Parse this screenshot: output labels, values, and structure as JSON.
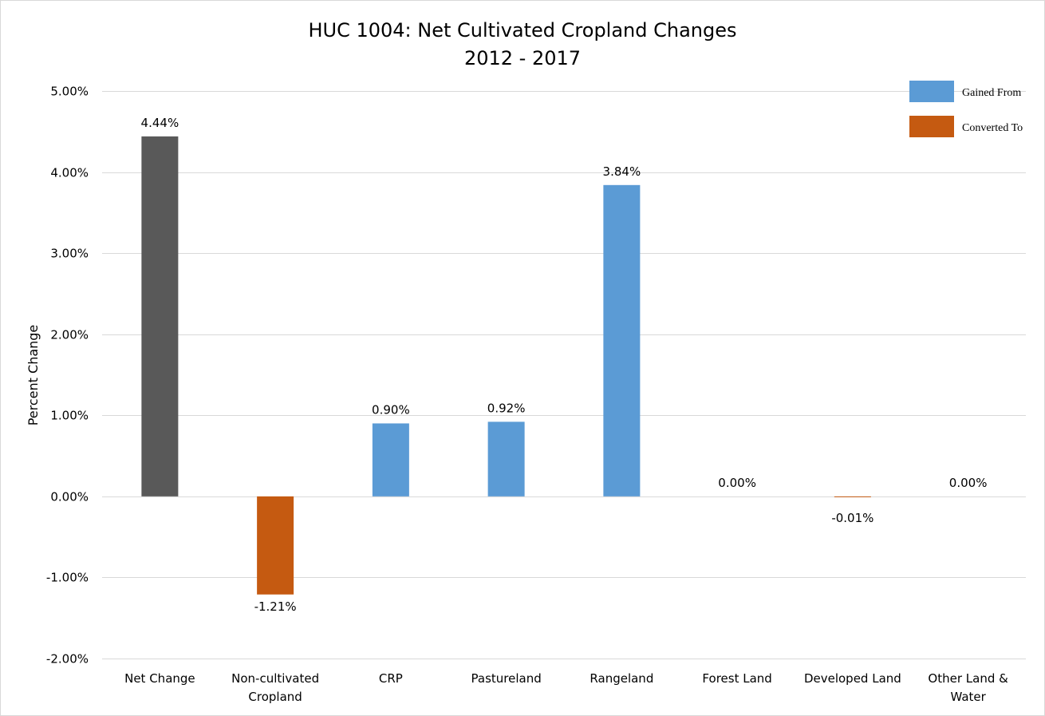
{
  "chart_data": {
    "type": "bar",
    "title": [
      "HUC 1004: Net Cultivated Cropland Changes",
      "2012 - 2017"
    ],
    "xlabel": "",
    "ylabel": "Percent Change",
    "ylim": [
      -2.0,
      5.0
    ],
    "yticks": [
      -2.0,
      -1.0,
      0.0,
      1.0,
      2.0,
      3.0,
      4.0,
      5.0
    ],
    "ytick_labels": [
      "-2.00%",
      "-1.00%",
      "0.00%",
      "1.00%",
      "2.00%",
      "3.00%",
      "4.00%",
      "5.00%"
    ],
    "grid": true,
    "legend_position": "top-right",
    "categories": [
      [
        "Net Change"
      ],
      [
        "Non-cultivated",
        "Cropland"
      ],
      [
        "CRP"
      ],
      [
        "Pastureland"
      ],
      [
        "Rangeland"
      ],
      [
        "Forest Land"
      ],
      [
        "Developed Land"
      ],
      [
        "Other Land &",
        "Water"
      ]
    ],
    "values": [
      4.44,
      -1.21,
      0.9,
      0.92,
      3.84,
      0.0,
      -0.01,
      0.0
    ],
    "value_labels": [
      "4.44%",
      "-1.21%",
      "0.90%",
      "0.92%",
      "3.84%",
      "0.00%",
      "-0.01%",
      "0.00%"
    ],
    "bar_series": [
      "net",
      "converted",
      "gained",
      "gained",
      "gained",
      "gained",
      "converted",
      "gained"
    ],
    "legend": [
      {
        "key": "gained",
        "label": "Gained From"
      },
      {
        "key": "converted",
        "label": "Converted To"
      }
    ],
    "colors": {
      "net": "#595959",
      "gained": "#5b9bd5",
      "converted": "#c55a11",
      "grid": "#d9d9d9"
    }
  }
}
